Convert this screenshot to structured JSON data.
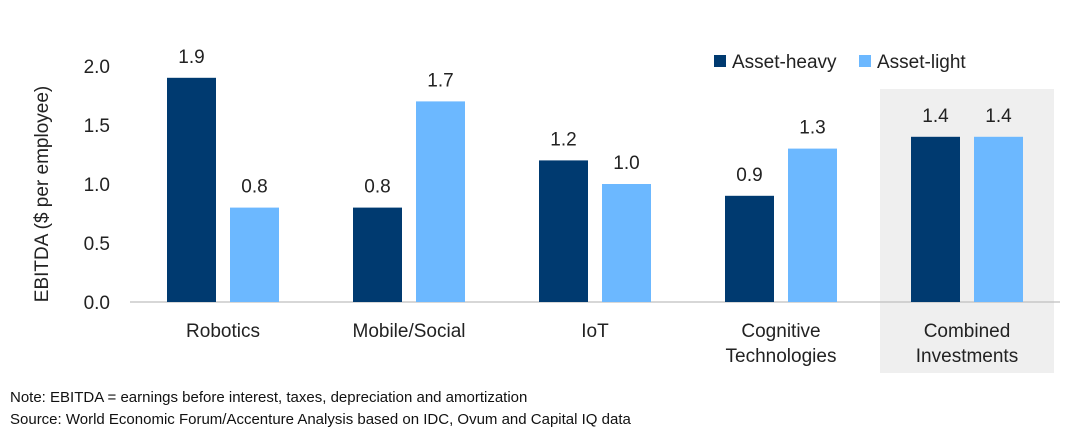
{
  "chart_data": {
    "type": "bar",
    "ylabel": "EBITDA ($ per employee)",
    "xlabel": "",
    "ylim": [
      0,
      2.0
    ],
    "yticks": [
      "0.0",
      "0.5",
      "1.0",
      "1.5",
      "2.0"
    ],
    "grid": false,
    "legend_position": "top-right",
    "categories": [
      [
        "Robotics"
      ],
      [
        "Mobile/Social"
      ],
      [
        "IoT"
      ],
      [
        "Cognitive",
        "Technologies"
      ],
      [
        "Combined",
        "Investments"
      ]
    ],
    "highlighted_category": 4,
    "series": [
      {
        "name": "Asset-heavy",
        "color": "#003a70",
        "values": [
          1.9,
          0.8,
          1.2,
          0.9,
          1.4
        ],
        "labels": [
          "1.9",
          "0.8",
          "1.2",
          "0.9",
          "1.4"
        ]
      },
      {
        "name": "Asset-light",
        "color": "#6cb8ff",
        "values": [
          0.8,
          1.7,
          1.0,
          1.3,
          1.4
        ],
        "labels": [
          "0.8",
          "1.7",
          "1.0",
          "1.3",
          "1.4"
        ]
      }
    ],
    "highlight_color": "#efefef"
  },
  "notes": {
    "note": "Note: EBITDA = earnings before interest, taxes, depreciation and amortization",
    "source": "Source: World Economic Forum/Accenture Analysis based on IDC, Ovum and Capital IQ data"
  }
}
